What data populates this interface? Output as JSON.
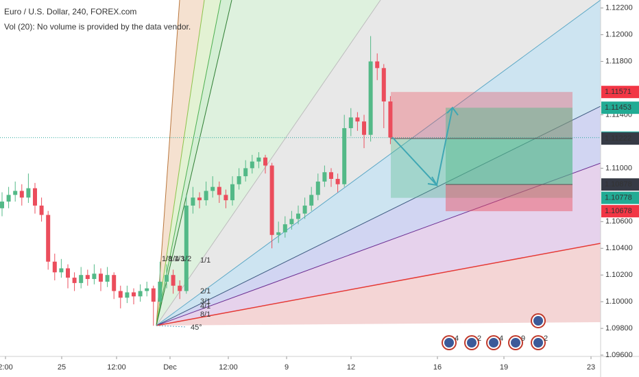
{
  "chart_data": {
    "type": "candlestick",
    "title": "Euro / U.S. Dollar, 240, FOREX.com",
    "subtitle": "Vol (20): No volume is provided by the data vendor.",
    "ylim": [
      1.0959,
      1.1226
    ],
    "yticks": [
      {
        "value": 1.122,
        "label": "1.12200"
      },
      {
        "value": 1.12,
        "label": "1.12000"
      },
      {
        "value": 1.118,
        "label": "1.11800"
      },
      {
        "value": 1.114,
        "label": "1.11400"
      },
      {
        "value": 1.11,
        "label": "1.11000"
      },
      {
        "value": 1.106,
        "label": "1.10600"
      },
      {
        "value": 1.104,
        "label": "1.10400"
      },
      {
        "value": 1.102,
        "label": "1.10200"
      },
      {
        "value": 1.1,
        "label": "1.10000"
      },
      {
        "value": 1.098,
        "label": "1.09800"
      },
      {
        "value": 1.096,
        "label": "1.09600"
      }
    ],
    "time_labels": [
      "2:00",
      "25",
      "12:00",
      "Dec",
      "12:00",
      "9",
      "12",
      "16",
      "19",
      "23"
    ],
    "up_color": "#53b987",
    "down_color": "#eb4d5c",
    "ohlc": [
      [
        1.107,
        1.1082,
        1.1064,
        1.1075
      ],
      [
        1.1075,
        1.1086,
        1.107,
        1.108
      ],
      [
        1.108,
        1.109,
        1.1075,
        1.1083
      ],
      [
        1.1083,
        1.1088,
        1.1072,
        1.1078
      ],
      [
        1.1078,
        1.1096,
        1.1074,
        1.1085
      ],
      [
        1.1085,
        1.1089,
        1.1066,
        1.1072
      ],
      [
        1.1072,
        1.1078,
        1.106,
        1.1065
      ],
      [
        1.1065,
        1.1068,
        1.1024,
        1.103
      ],
      [
        1.103,
        1.1036,
        1.1016,
        1.1022
      ],
      [
        1.1022,
        1.1032,
        1.1018,
        1.1025
      ],
      [
        1.1025,
        1.1028,
        1.101,
        1.1018
      ],
      [
        1.1018,
        1.1022,
        1.1008,
        1.1014
      ],
      [
        1.1014,
        1.1026,
        1.101,
        1.102
      ],
      [
        1.102,
        1.1024,
        1.1012,
        1.1017
      ],
      [
        1.1017,
        1.1028,
        1.1013,
        1.1021
      ],
      [
        1.1021,
        1.1025,
        1.1008,
        1.1015
      ],
      [
        1.1015,
        1.1026,
        1.1011,
        1.102
      ],
      [
        1.102,
        1.1022,
        1.1002,
        1.1008
      ],
      [
        1.1008,
        1.1012,
        1.0995,
        1.1003
      ],
      [
        1.1003,
        1.1012,
        1.0999,
        1.1007
      ],
      [
        1.1007,
        1.101,
        1.0998,
        1.1004
      ],
      [
        1.1004,
        1.1013,
        1.1,
        1.1008
      ],
      [
        1.1008,
        1.1015,
        1.1004,
        1.101
      ],
      [
        1.101,
        1.1012,
        1.0982,
        1.1
      ],
      [
        1.1,
        1.103,
        1.0996,
        1.1015
      ],
      [
        1.1015,
        1.1028,
        1.101,
        1.102
      ],
      [
        1.102,
        1.1024,
        1.1006,
        1.1012
      ],
      [
        1.1012,
        1.1016,
        1.1002,
        1.1008
      ],
      [
        1.1008,
        1.108,
        1.1006,
        1.1072
      ],
      [
        1.1072,
        1.1086,
        1.1066,
        1.1078
      ],
      [
        1.1078,
        1.1082,
        1.107,
        1.1076
      ],
      [
        1.1076,
        1.109,
        1.1072,
        1.1083
      ],
      [
        1.1083,
        1.1094,
        1.1078,
        1.1086
      ],
      [
        1.1086,
        1.109,
        1.1074,
        1.108
      ],
      [
        1.108,
        1.1084,
        1.107,
        1.1076
      ],
      [
        1.1076,
        1.1094,
        1.1072,
        1.1088
      ],
      [
        1.1088,
        1.11,
        1.1084,
        1.1094
      ],
      [
        1.1094,
        1.1106,
        1.109,
        1.11
      ],
      [
        1.11,
        1.111,
        1.1096,
        1.1105
      ],
      [
        1.1105,
        1.1112,
        1.11,
        1.1108
      ],
      [
        1.1108,
        1.111,
        1.1096,
        1.1102
      ],
      [
        1.1102,
        1.1104,
        1.104,
        1.105
      ],
      [
        1.105,
        1.106,
        1.1044,
        1.1052
      ],
      [
        1.1052,
        1.1064,
        1.1048,
        1.1058
      ],
      [
        1.1058,
        1.1068,
        1.1054,
        1.1062
      ],
      [
        1.1062,
        1.1072,
        1.1058,
        1.1066
      ],
      [
        1.1066,
        1.1078,
        1.1062,
        1.1072
      ],
      [
        1.1072,
        1.1086,
        1.1068,
        1.108
      ],
      [
        1.108,
        1.1096,
        1.1076,
        1.109
      ],
      [
        1.109,
        1.1102,
        1.1086,
        1.1097
      ],
      [
        1.1097,
        1.11,
        1.1086,
        1.1092
      ],
      [
        1.1092,
        1.1096,
        1.1082,
        1.1088
      ],
      [
        1.1088,
        1.114,
        1.1086,
        1.113
      ],
      [
        1.113,
        1.1145,
        1.1124,
        1.1138
      ],
      [
        1.1138,
        1.1142,
        1.1128,
        1.1135
      ],
      [
        1.1135,
        1.114,
        1.1115,
        1.1125
      ],
      [
        1.1125,
        1.1199,
        1.112,
        1.118
      ],
      [
        1.118,
        1.1186,
        1.1166,
        1.1175
      ],
      [
        1.1175,
        1.1178,
        1.113,
        1.115
      ],
      [
        1.115,
        1.1154,
        1.1118,
        1.1123
      ]
    ],
    "current_price": 1.11229,
    "price_badges": [
      {
        "value": 1.11571,
        "color": "#f23645"
      },
      {
        "value": 1.11453,
        "color": "#22ab94"
      },
      {
        "value": 1.11229,
        "color": "#26a69a"
      },
      {
        "value": 1.11222,
        "color": "#363a45"
      },
      {
        "value": 1.10878,
        "color": "#363a45"
      },
      {
        "value": 1.10778,
        "color": "#22ab94"
      },
      {
        "value": 1.10678,
        "color": "#f23645"
      }
    ],
    "short_position": {
      "entry": 1.11222,
      "stop": 1.11571,
      "target": 1.10778
    },
    "long_position": {
      "entry": 1.10878,
      "target": 1.11453,
      "stop": 1.10678
    },
    "fan_labels": [
      "1/8",
      "1/4",
      "1/3",
      "1/2",
      "1/1",
      "2/1",
      "3/1",
      "4/1",
      "8/1",
      "45°"
    ],
    "event_labels": [
      "4",
      "2",
      "4",
      "9",
      "2"
    ]
  }
}
